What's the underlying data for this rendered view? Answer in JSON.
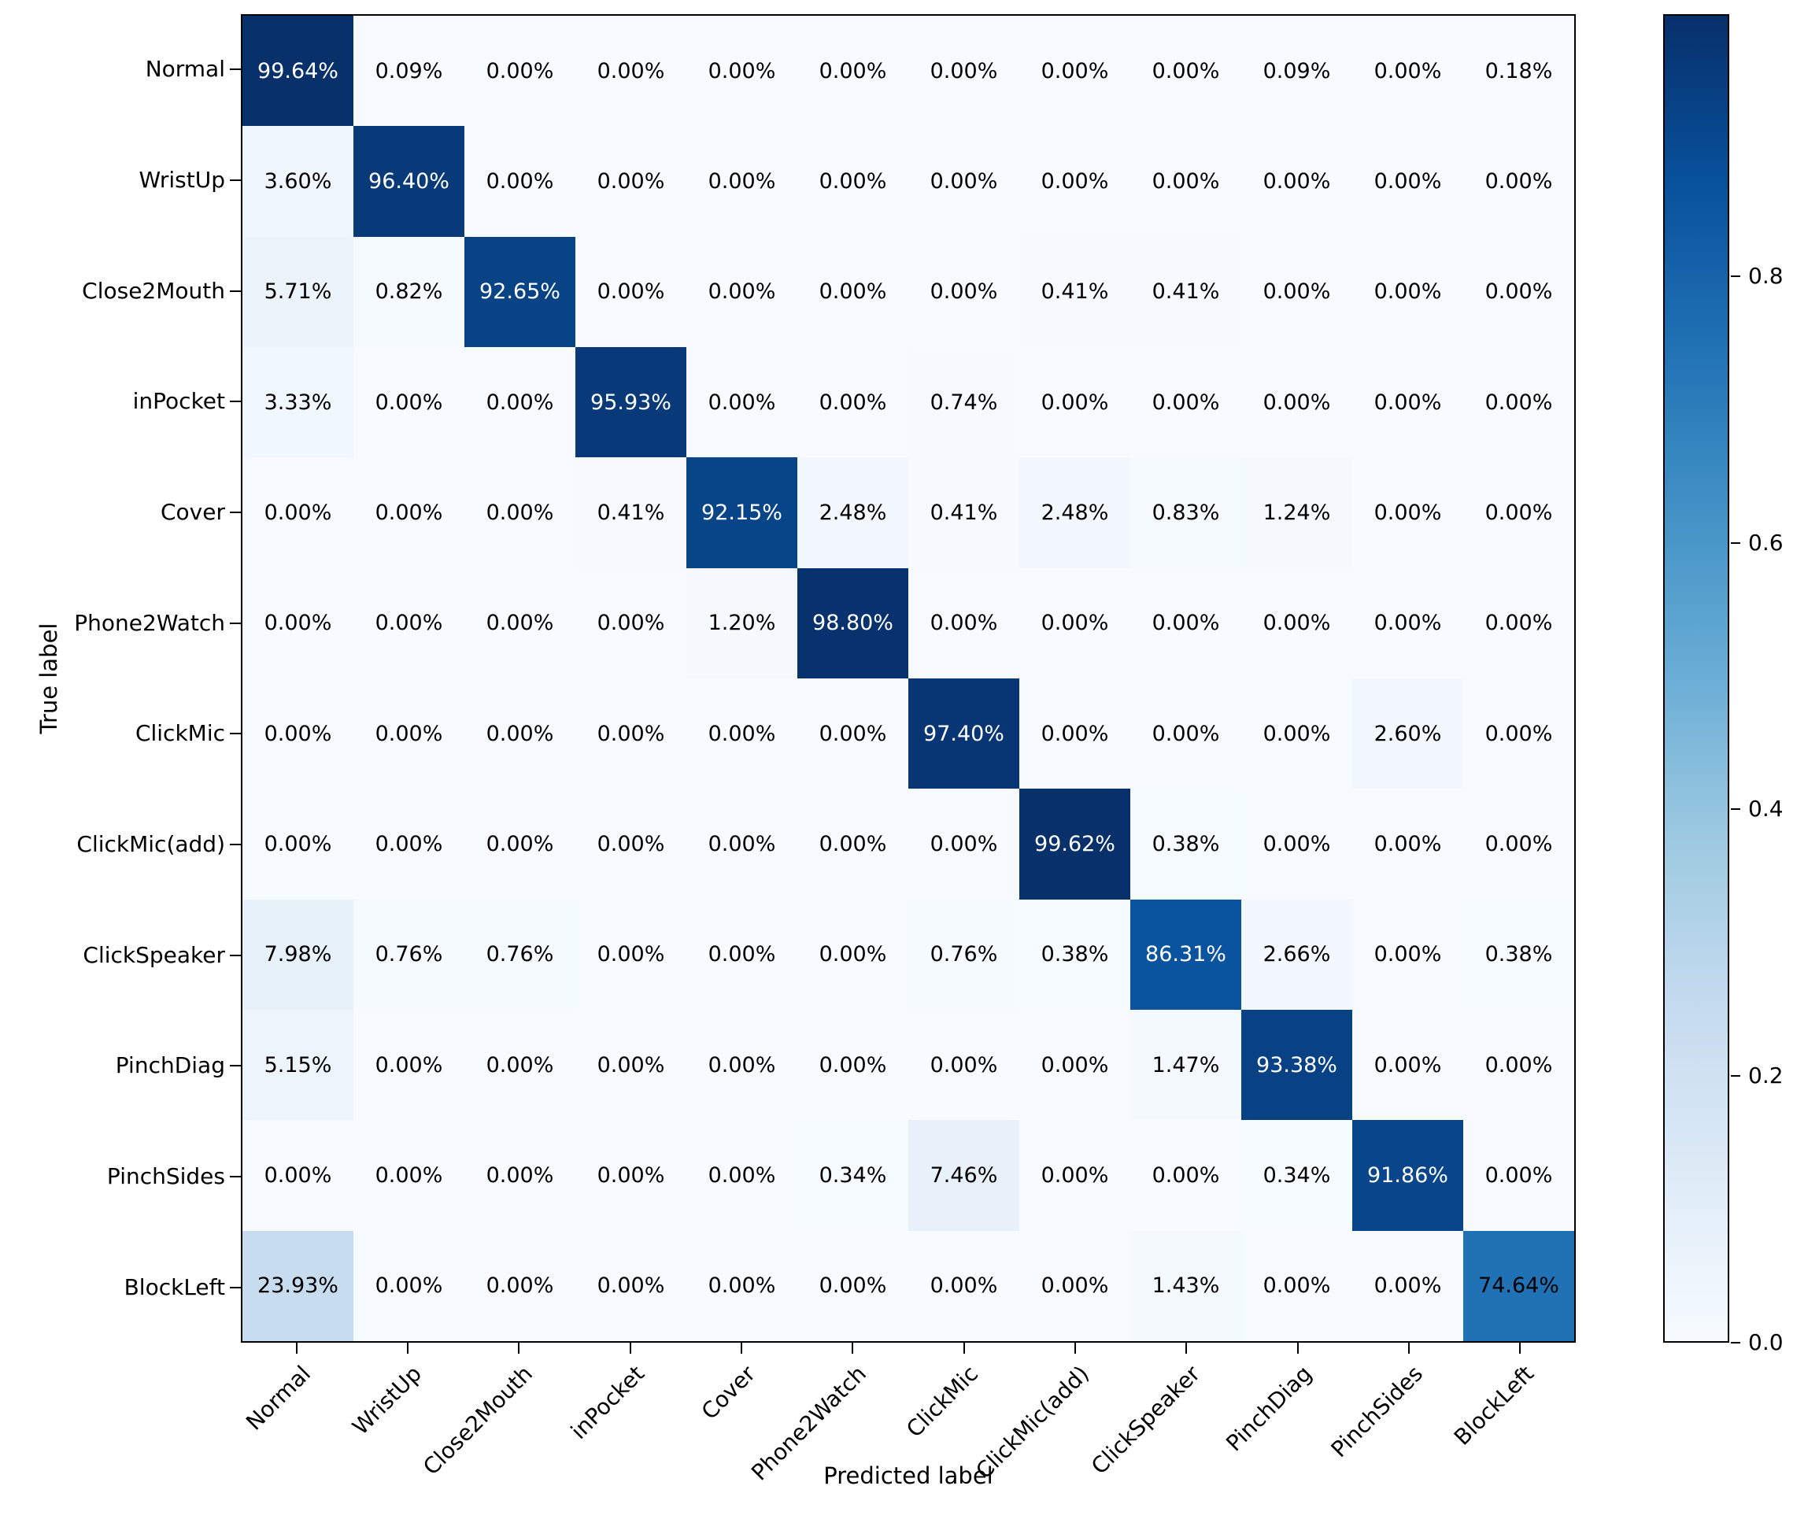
{
  "chart_data": {
    "type": "heatmap",
    "title": "",
    "xlabel": "Predicted label",
    "ylabel": "True label",
    "categories": [
      "Normal",
      "WristUp",
      "Close2Mouth",
      "inPocket",
      "Cover",
      "Phone2Watch",
      "ClickMic",
      "ClickMic(add)",
      "ClickSpeaker",
      "PinchDiag",
      "PinchSides",
      "BlockLeft"
    ],
    "matrix_percent": [
      [
        99.64,
        0.09,
        0.0,
        0.0,
        0.0,
        0.0,
        0.0,
        0.0,
        0.0,
        0.09,
        0.0,
        0.18
      ],
      [
        3.6,
        96.4,
        0.0,
        0.0,
        0.0,
        0.0,
        0.0,
        0.0,
        0.0,
        0.0,
        0.0,
        0.0
      ],
      [
        5.71,
        0.82,
        92.65,
        0.0,
        0.0,
        0.0,
        0.0,
        0.41,
        0.41,
        0.0,
        0.0,
        0.0
      ],
      [
        3.33,
        0.0,
        0.0,
        95.93,
        0.0,
        0.0,
        0.74,
        0.0,
        0.0,
        0.0,
        0.0,
        0.0
      ],
      [
        0.0,
        0.0,
        0.0,
        0.41,
        92.15,
        2.48,
        0.41,
        2.48,
        0.83,
        1.24,
        0.0,
        0.0
      ],
      [
        0.0,
        0.0,
        0.0,
        0.0,
        1.2,
        98.8,
        0.0,
        0.0,
        0.0,
        0.0,
        0.0,
        0.0
      ],
      [
        0.0,
        0.0,
        0.0,
        0.0,
        0.0,
        0.0,
        97.4,
        0.0,
        0.0,
        0.0,
        2.6,
        0.0
      ],
      [
        0.0,
        0.0,
        0.0,
        0.0,
        0.0,
        0.0,
        0.0,
        99.62,
        0.38,
        0.0,
        0.0,
        0.0
      ],
      [
        7.98,
        0.76,
        0.76,
        0.0,
        0.0,
        0.0,
        0.76,
        0.38,
        86.31,
        2.66,
        0.0,
        0.38
      ],
      [
        5.15,
        0.0,
        0.0,
        0.0,
        0.0,
        0.0,
        0.0,
        0.0,
        1.47,
        93.38,
        0.0,
        0.0
      ],
      [
        0.0,
        0.0,
        0.0,
        0.0,
        0.0,
        0.34,
        7.46,
        0.0,
        0.0,
        0.34,
        91.86,
        0.0
      ],
      [
        23.93,
        0.0,
        0.0,
        0.0,
        0.0,
        0.0,
        0.0,
        0.0,
        1.43,
        0.0,
        0.0,
        74.64
      ]
    ],
    "value_suffix": "%",
    "value_decimals": 2,
    "colormap": "Blues",
    "colormap_stops": [
      {
        "t": 0.0,
        "color": "#f7fbff"
      },
      {
        "t": 0.125,
        "color": "#deebf7"
      },
      {
        "t": 0.25,
        "color": "#c6dbef"
      },
      {
        "t": 0.375,
        "color": "#9ecae1"
      },
      {
        "t": 0.5,
        "color": "#6baed6"
      },
      {
        "t": 0.625,
        "color": "#4292c6"
      },
      {
        "t": 0.75,
        "color": "#2171b5"
      },
      {
        "t": 0.875,
        "color": "#08519c"
      },
      {
        "t": 1.0,
        "color": "#08306b"
      }
    ],
    "vmin": 0.0,
    "vmax": 0.9964,
    "colorbar_ticks": [
      {
        "label": "0.8",
        "value": 0.8
      },
      {
        "label": "0.6",
        "value": 0.6
      },
      {
        "label": "0.4",
        "value": 0.4
      },
      {
        "label": "0.2",
        "value": 0.2
      },
      {
        "label": "0.0",
        "value": 0.0
      }
    ],
    "colorbar_position": "right",
    "grid": false,
    "white_text_threshold_percent": 80,
    "colors": {
      "cell_max": "#08306b",
      "cell_min": "#f7fbff",
      "annotation_dark": "#000000",
      "annotation_light": "#ffffff",
      "spine": "#000000",
      "background": "#ffffff"
    }
  }
}
